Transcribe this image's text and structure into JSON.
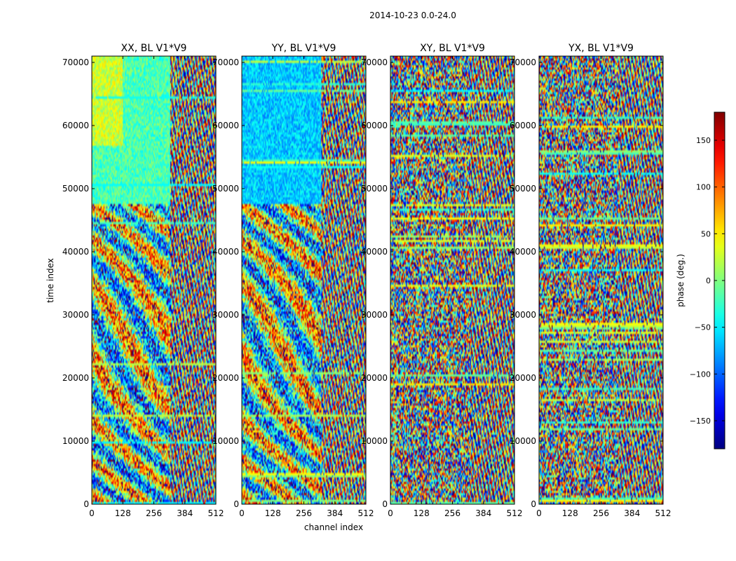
{
  "chart_data": {
    "type": "heatmap",
    "suptitle": "2014-10-23 0.0-24.0",
    "xlabel": "channel index",
    "ylabel": "time index",
    "xlim": [
      0,
      512
    ],
    "ylim": [
      0,
      71000
    ],
    "xticks": [
      0,
      128,
      256,
      384,
      512
    ],
    "yticks": [
      0,
      10000,
      20000,
      30000,
      40000,
      50000,
      60000,
      70000
    ],
    "panels": [
      {
        "title": "XX, BL V1*V9",
        "pol": "XX"
      },
      {
        "title": "YY, BL V1*V9",
        "pol": "YY"
      },
      {
        "title": "XY, BL V1*V9",
        "pol": "XY"
      },
      {
        "title": "YX, BL V1*V9",
        "pol": "YX"
      }
    ],
    "colorbar": {
      "label": "phase (deg.)",
      "range": [
        -180,
        180
      ],
      "ticks": [
        -150,
        -100,
        -50,
        0,
        50,
        100,
        150
      ],
      "tick_labels": [
        "−150",
        "−100",
        "−50",
        "0",
        "50",
        "100",
        "150"
      ],
      "colormap": "jet"
    }
  }
}
